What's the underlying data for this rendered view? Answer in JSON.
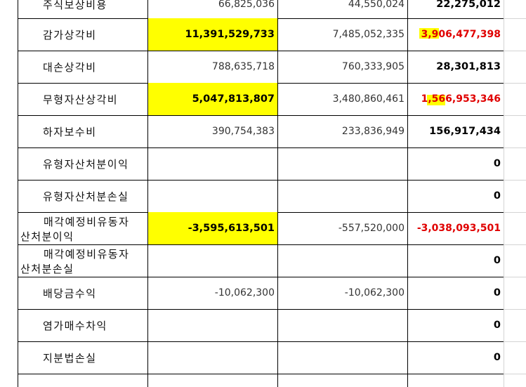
{
  "sheet": {
    "rows": [
      {
        "label": "주식보상비용",
        "prior": "66,825,036",
        "current": "44,550,024",
        "diff": "22,275,012",
        "prior_yellow": false,
        "diff_red": false
      },
      {
        "label": "감가상각비",
        "prior": "11,391,529,733",
        "current": "7,485,052,335",
        "diff": "3,906,477,398",
        "prior_yellow": true,
        "diff_red": true
      },
      {
        "label": "대손상각비",
        "prior": "788,635,718",
        "current": "760,333,905",
        "diff": "28,301,813",
        "prior_yellow": false,
        "diff_red": false
      },
      {
        "label": "무형자산상각비",
        "prior": "5,047,813,807",
        "current": "3,480,860,461",
        "diff": "1,566,953,346",
        "prior_yellow": true,
        "diff_red": true
      },
      {
        "label": "하자보수비",
        "prior": "390,754,383",
        "current": "233,836,949",
        "diff": "156,917,434",
        "prior_yellow": false,
        "diff_red": false
      },
      {
        "label": "유형자산처분이익",
        "prior": "",
        "current": "",
        "diff": "0",
        "prior_yellow": false,
        "diff_red": false
      },
      {
        "label": "유형자산처분손실",
        "prior": "",
        "current": "",
        "diff": "0",
        "prior_yellow": false,
        "diff_red": false
      },
      {
        "label_line1": "매각예정비유동자",
        "label_line2": "산처분이익",
        "prior": "-3,595,613,501",
        "current": "-557,520,000",
        "diff": "-3,038,093,501",
        "prior_yellow": true,
        "diff_red": true
      },
      {
        "label_line1": "매각예정비유동자",
        "label_line2": "산처분손실",
        "prior": "",
        "current": "",
        "diff": "0",
        "prior_yellow": false,
        "diff_red": false
      },
      {
        "label": "배당금수익",
        "prior": "-10,062,300",
        "current": "-10,062,300",
        "diff": "0",
        "prior_yellow": false,
        "diff_red": false
      },
      {
        "label": "염가매수차익",
        "prior": "",
        "current": "",
        "diff": "0",
        "prior_yellow": false,
        "diff_red": false
      },
      {
        "label": "지분법손실",
        "prior": "",
        "current": "",
        "diff": "0",
        "prior_yellow": false,
        "diff_red": false
      },
      {
        "label": "",
        "prior": "",
        "current": "",
        "diff": "",
        "prior_yellow": false,
        "diff_red": false
      }
    ]
  },
  "colors": {
    "highlight": "#ffff00",
    "negative_diff": "#e00000",
    "grid": "#000000",
    "empty_grid": "#d4d4d4"
  }
}
